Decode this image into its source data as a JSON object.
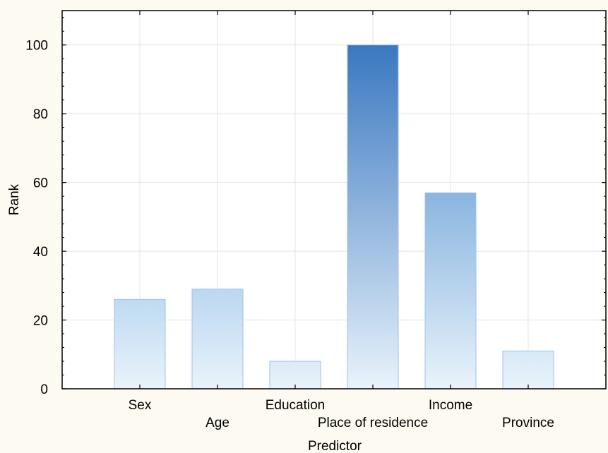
{
  "chart_data": {
    "type": "bar",
    "categories": [
      "Sex",
      "Age",
      "Education",
      "Place of residence",
      "Income",
      "Province"
    ],
    "values": [
      26,
      29,
      8,
      100,
      57,
      11
    ],
    "xlabel": "Predictor",
    "ylabel": "Rank",
    "ylim": [
      0,
      110
    ],
    "yticks": [
      0,
      20,
      40,
      60,
      80,
      100
    ],
    "grid": true,
    "legend": "none",
    "colors": {
      "bar_top_high": "#3a78c0",
      "bar_mid": "#a9cdec",
      "bar_bottom": "#e9f3fb",
      "bar_stroke": "#9cc3e6",
      "plot_background": "#ffffff",
      "page_background": "#fdfaf1",
      "grid": "#e4e4e4"
    }
  }
}
